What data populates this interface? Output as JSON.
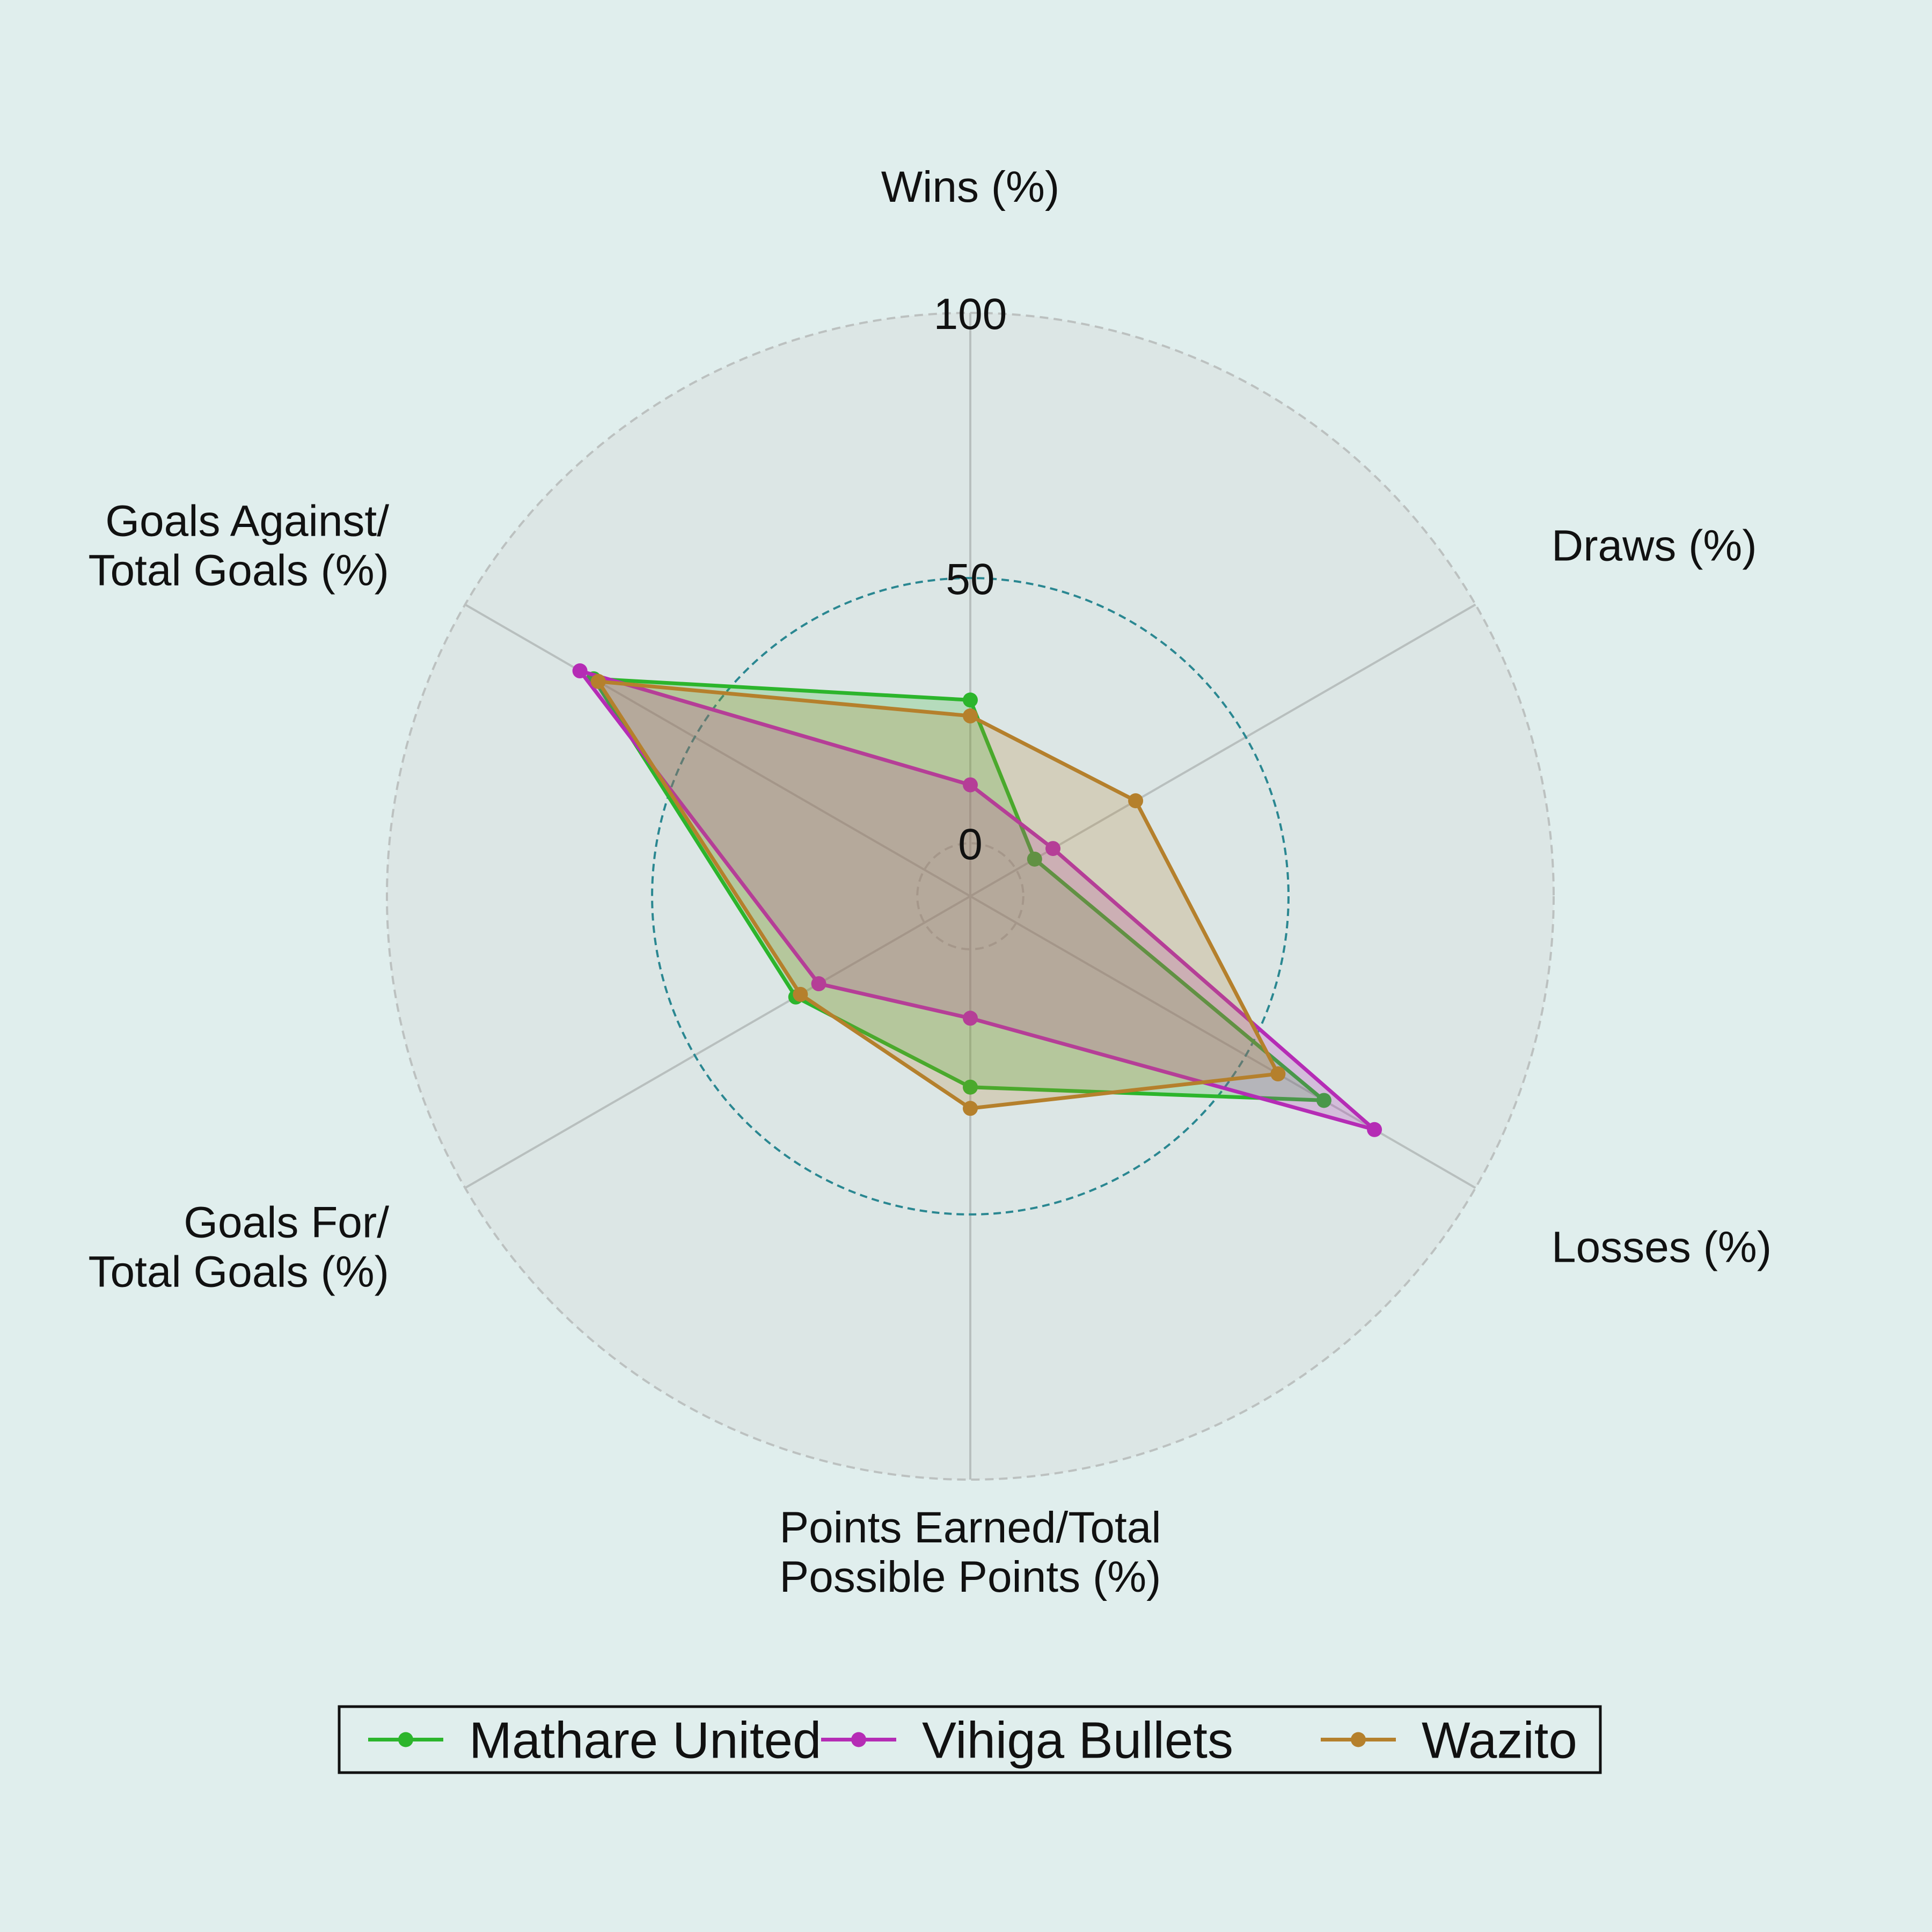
{
  "chart_data": {
    "type": "radar",
    "title": "",
    "axes": [
      [
        "Wins (%)"
      ],
      [
        "Draws (%)"
      ],
      [
        "Losses (%)"
      ],
      [
        "Points Earned/Total",
        "Possible Points (%)"
      ],
      [
        "Goals For/",
        "Total Goals (%)"
      ],
      [
        "Goals Against/",
        "Total Goals (%)"
      ]
    ],
    "rlim": [
      -10,
      100
    ],
    "rings": [
      {
        "value": 0,
        "label": "0",
        "style": "light"
      },
      {
        "value": 50,
        "label": "50",
        "style": "accent"
      },
      {
        "value": 100,
        "label": "100",
        "style": "light"
      }
    ],
    "series": [
      {
        "name": "Mathare United",
        "color": "#2cb52c",
        "values": [
          27,
          4,
          67,
          26,
          28,
          72
        ]
      },
      {
        "name": "Vihiga Bullets",
        "color": "#b52cb5",
        "values": [
          11,
          8,
          78,
          13,
          23,
          75
        ]
      },
      {
        "name": "Wazito",
        "color": "#b5802c",
        "values": [
          24,
          26,
          57,
          30,
          27,
          71
        ]
      }
    ],
    "legend_position": "bottom-center",
    "grid": true
  }
}
